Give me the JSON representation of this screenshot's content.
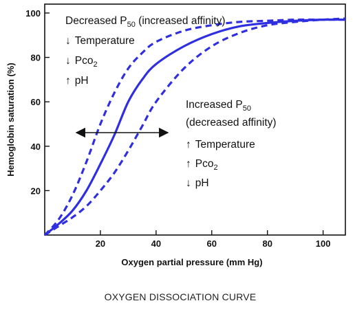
{
  "chart_data": {
    "type": "line",
    "title": "OXYGEN DISSOCIATION CURVE",
    "xlabel": "Oxygen partial pressure (mm Hg)",
    "ylabel": "Hemoglobin saturation (%)",
    "xlim": [
      0,
      108
    ],
    "ylim": [
      0,
      104
    ],
    "xticks": [
      "20",
      "40",
      "60",
      "80",
      "100"
    ],
    "yticks": [
      "20",
      "40",
      "60",
      "80",
      "100"
    ],
    "grid": false,
    "series": [
      {
        "style": "dashed",
        "color": "#2f2fe0",
        "x": [
          0,
          5,
          10,
          15,
          20,
          25,
          30,
          35,
          40,
          50,
          60,
          70,
          80,
          90,
          100,
          108
        ],
        "y": [
          0,
          7,
          18,
          33,
          50,
          64,
          75,
          82,
          87,
          92,
          94.5,
          96,
          96.5,
          97,
          97,
          97
        ]
      },
      {
        "style": "solid",
        "color": "#2f2fe0",
        "x": [
          0,
          5,
          10,
          15,
          20,
          25,
          30,
          35,
          40,
          50,
          60,
          70,
          80,
          90,
          100,
          108
        ],
        "y": [
          0,
          5,
          11,
          20,
          32,
          45,
          60,
          70,
          77,
          85,
          90.5,
          94,
          95.5,
          96.5,
          97,
          97
        ]
      },
      {
        "style": "dashed",
        "color": "#2f2fe0",
        "x": [
          0,
          5,
          10,
          15,
          20,
          25,
          30,
          35,
          40,
          50,
          60,
          70,
          80,
          90,
          100,
          108
        ],
        "y": [
          0,
          4,
          8,
          13,
          20,
          28,
          38,
          49,
          60,
          75,
          85,
          91,
          94.5,
          96,
          97,
          97.5
        ]
      }
    ],
    "annotations": {
      "left": {
        "title_main": "Decreased P",
        "title_sub": "50",
        "title_rest": " (increased affinity)",
        "lines": [
          {
            "arrow": "↓",
            "text": "Temperature",
            "sub": ""
          },
          {
            "arrow": "↓",
            "text": "Pco",
            "sub": "2"
          },
          {
            "arrow": "↑",
            "text": "pH",
            "sub": ""
          }
        ]
      },
      "right": {
        "title_main": "Increased P",
        "title_sub": "50",
        "title_line2": "(decreased affinity)",
        "lines": [
          {
            "arrow": "↑",
            "text": "Temperature",
            "sub": ""
          },
          {
            "arrow": "↑",
            "text": "Pco",
            "sub": "2"
          },
          {
            "arrow": "↓",
            "text": "pH",
            "sub": ""
          }
        ]
      }
    }
  }
}
